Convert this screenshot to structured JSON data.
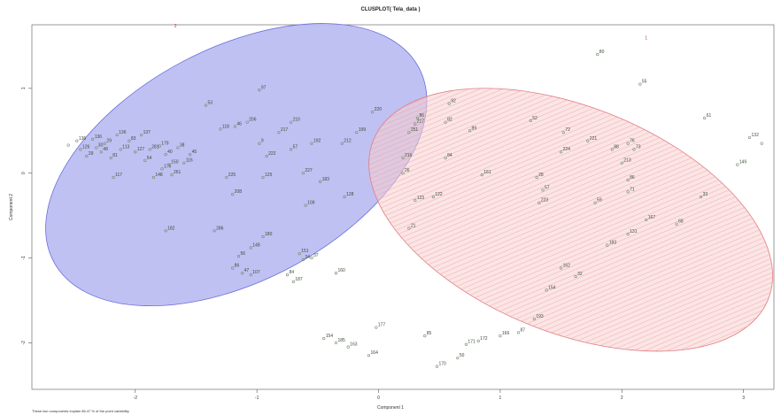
{
  "chart_data": {
    "type": "scatter",
    "title": "CLUSPLOT( Tela_data )",
    "xlabel": "Component 1",
    "ylabel": "Component 2",
    "note": "These two components explain 86.47 % of the point variability.",
    "xlim": [
      -2.85,
      3.25
    ],
    "ylim": [
      -2.55,
      1.75
    ],
    "x_ticks": [
      "-2",
      "-1",
      "0",
      "1",
      "2",
      "3"
    ],
    "x_tick_values": [
      -2,
      -1,
      0,
      1,
      2,
      3
    ],
    "y_ticks": [
      "1",
      "0",
      "-1",
      "-2"
    ],
    "y_tick_values": [
      1,
      0,
      -1,
      -2
    ],
    "colors": {
      "cluster_blue_fill": "#b8baf2",
      "cluster_blue_stroke": "#6a6fd8",
      "cluster_red_fill": "#f7cfd0",
      "cluster_red_stroke": "#e27b80",
      "point": "#6f8c6a",
      "label": "#3a4a33",
      "cluster_label": "#c0392b"
    },
    "clusters": [
      {
        "label": "2",
        "cx": -1.17,
        "cy": 0.1,
        "rx": 1.7,
        "ry": 1.37,
        "angle": -28,
        "fill_key": "cluster_blue_fill",
        "stroke_key": "cluster_blue_stroke",
        "label_x": -1.67,
        "label_y": 1.72
      },
      {
        "label": "1",
        "cx": 1.58,
        "cy": -0.55,
        "rx": 1.75,
        "ry": 1.33,
        "angle": 22,
        "fill_key": "cluster_red_fill",
        "stroke_key": "cluster_red_stroke",
        "label_x": 2.2,
        "label_y": 1.58
      }
    ],
    "points": [
      {
        "x": -2.55,
        "y": 0.33,
        "label": ""
      },
      {
        "x": -2.48,
        "y": 0.38,
        "label": "136"
      },
      {
        "x": -2.45,
        "y": 0.28,
        "label": "126"
      },
      {
        "x": -2.4,
        "y": 0.2,
        "label": "29"
      },
      {
        "x": -2.35,
        "y": 0.4,
        "label": "136"
      },
      {
        "x": -2.32,
        "y": 0.3,
        "label": "30"
      },
      {
        "x": -2.28,
        "y": 0.25,
        "label": "48"
      },
      {
        "x": -2.25,
        "y": 0.35,
        "label": "29"
      },
      {
        "x": -2.2,
        "y": 0.18,
        "label": "81"
      },
      {
        "x": -2.15,
        "y": 0.45,
        "label": "136"
      },
      {
        "x": -2.12,
        "y": 0.28,
        "label": "113"
      },
      {
        "x": -2.05,
        "y": 0.38,
        "label": "83"
      },
      {
        "x": -2.0,
        "y": 0.25,
        "label": "127"
      },
      {
        "x": -1.95,
        "y": 0.45,
        "label": "137"
      },
      {
        "x": -1.92,
        "y": 0.15,
        "label": "54"
      },
      {
        "x": -1.88,
        "y": 0.28,
        "label": "281"
      },
      {
        "x": -1.8,
        "y": 0.32,
        "label": "179"
      },
      {
        "x": -1.75,
        "y": 0.22,
        "label": "40"
      },
      {
        "x": -1.78,
        "y": 0.05,
        "label": "176"
      },
      {
        "x": -1.72,
        "y": 0.1,
        "label": "150"
      },
      {
        "x": -1.7,
        "y": -0.02,
        "label": "261"
      },
      {
        "x": -1.85,
        "y": -0.05,
        "label": "148"
      },
      {
        "x": -2.18,
        "y": -0.05,
        "label": "117"
      },
      {
        "x": -1.65,
        "y": 0.3,
        "label": "38"
      },
      {
        "x": -1.6,
        "y": 0.12,
        "label": "116"
      },
      {
        "x": -1.55,
        "y": 0.22,
        "label": "45"
      },
      {
        "x": -1.42,
        "y": 0.8,
        "label": "53"
      },
      {
        "x": -1.3,
        "y": 0.52,
        "label": "118"
      },
      {
        "x": -1.18,
        "y": 0.55,
        "label": "46"
      },
      {
        "x": -1.08,
        "y": 0.6,
        "label": "206"
      },
      {
        "x": -0.98,
        "y": 0.35,
        "label": "9"
      },
      {
        "x": -0.92,
        "y": 0.2,
        "label": "222"
      },
      {
        "x": -0.98,
        "y": 0.98,
        "label": "97"
      },
      {
        "x": -0.82,
        "y": 0.48,
        "label": "217"
      },
      {
        "x": -0.72,
        "y": 0.6,
        "label": "210"
      },
      {
        "x": -0.72,
        "y": 0.28,
        "label": "57"
      },
      {
        "x": -0.55,
        "y": 0.35,
        "label": "192"
      },
      {
        "x": -0.3,
        "y": 0.35,
        "label": "212"
      },
      {
        "x": -0.18,
        "y": 0.48,
        "label": "199"
      },
      {
        "x": -0.05,
        "y": 0.72,
        "label": "220"
      },
      {
        "x": -1.25,
        "y": -0.05,
        "label": "225"
      },
      {
        "x": -0.95,
        "y": -0.05,
        "label": "125"
      },
      {
        "x": -0.62,
        "y": 0.0,
        "label": "227"
      },
      {
        "x": -0.48,
        "y": -0.1,
        "label": "183"
      },
      {
        "x": -1.2,
        "y": -0.25,
        "label": "208"
      },
      {
        "x": -0.6,
        "y": -0.38,
        "label": "109"
      },
      {
        "x": -0.28,
        "y": -0.28,
        "label": "128"
      },
      {
        "x": -1.75,
        "y": -0.68,
        "label": "182"
      },
      {
        "x": -1.35,
        "y": -0.68,
        "label": "286"
      },
      {
        "x": -1.05,
        "y": -0.88,
        "label": "148"
      },
      {
        "x": -0.95,
        "y": -0.75,
        "label": "180"
      },
      {
        "x": -1.15,
        "y": -0.98,
        "label": "56"
      },
      {
        "x": -1.2,
        "y": -1.12,
        "label": "86"
      },
      {
        "x": -1.12,
        "y": -1.18,
        "label": "47"
      },
      {
        "x": -1.05,
        "y": -1.2,
        "label": "107"
      },
      {
        "x": -0.65,
        "y": -0.95,
        "label": "151"
      },
      {
        "x": -0.55,
        "y": -1.0,
        "label": "37"
      },
      {
        "x": -0.62,
        "y": -1.02,
        "label": "34"
      },
      {
        "x": -0.75,
        "y": -1.2,
        "label": "84"
      },
      {
        "x": -0.7,
        "y": -1.28,
        "label": "187"
      },
      {
        "x": -0.35,
        "y": -1.18,
        "label": "160"
      },
      {
        "x": -0.45,
        "y": -1.95,
        "label": "154"
      },
      {
        "x": -0.35,
        "y": -2.0,
        "label": "185"
      },
      {
        "x": -0.25,
        "y": -2.05,
        "label": "163"
      },
      {
        "x": -0.08,
        "y": -2.15,
        "label": "164"
      },
      {
        "x": -0.02,
        "y": -1.82,
        "label": "177"
      },
      {
        "x": 0.2,
        "y": 0.18,
        "label": "216"
      },
      {
        "x": 0.25,
        "y": 0.48,
        "label": "251"
      },
      {
        "x": 0.3,
        "y": 0.58,
        "label": "217"
      },
      {
        "x": 0.32,
        "y": 0.65,
        "label": "86"
      },
      {
        "x": 0.55,
        "y": 0.6,
        "label": "82"
      },
      {
        "x": 0.58,
        "y": 0.82,
        "label": "92"
      },
      {
        "x": 0.75,
        "y": 0.5,
        "label": "89"
      },
      {
        "x": 0.45,
        "y": -0.28,
        "label": "122"
      },
      {
        "x": 0.2,
        "y": 0.0,
        "label": "26"
      },
      {
        "x": 0.3,
        "y": -0.32,
        "label": "123"
      },
      {
        "x": 0.55,
        "y": 0.18,
        "label": "84"
      },
      {
        "x": 0.85,
        "y": -0.02,
        "label": "161"
      },
      {
        "x": 0.25,
        "y": -0.65,
        "label": "21"
      },
      {
        "x": 0.38,
        "y": -1.92,
        "label": "85"
      },
      {
        "x": 0.48,
        "y": -2.28,
        "label": "170"
      },
      {
        "x": 0.65,
        "y": -2.18,
        "label": "50"
      },
      {
        "x": 0.72,
        "y": -2.02,
        "label": "171"
      },
      {
        "x": 0.82,
        "y": -1.98,
        "label": "172"
      },
      {
        "x": 1.0,
        "y": -1.92,
        "label": "166"
      },
      {
        "x": 1.15,
        "y": -1.88,
        "label": "87"
      },
      {
        "x": 1.28,
        "y": -1.72,
        "label": "193"
      },
      {
        "x": 1.38,
        "y": -1.38,
        "label": "154"
      },
      {
        "x": 1.5,
        "y": -1.12,
        "label": "162"
      },
      {
        "x": 1.62,
        "y": -1.22,
        "label": "32"
      },
      {
        "x": 1.88,
        "y": -0.85,
        "label": "183"
      },
      {
        "x": 2.05,
        "y": -0.72,
        "label": "131"
      },
      {
        "x": 2.2,
        "y": -0.55,
        "label": "167"
      },
      {
        "x": 2.45,
        "y": -0.6,
        "label": "68"
      },
      {
        "x": 1.25,
        "y": 0.62,
        "label": "52"
      },
      {
        "x": 1.52,
        "y": 0.48,
        "label": "72"
      },
      {
        "x": 1.72,
        "y": 0.38,
        "label": "221"
      },
      {
        "x": 1.5,
        "y": 0.25,
        "label": "224"
      },
      {
        "x": 1.3,
        "y": -0.05,
        "label": "28"
      },
      {
        "x": 1.35,
        "y": -0.2,
        "label": "57"
      },
      {
        "x": 1.32,
        "y": -0.35,
        "label": "223"
      },
      {
        "x": 1.78,
        "y": -0.35,
        "label": "59"
      },
      {
        "x": 1.92,
        "y": 0.28,
        "label": "88"
      },
      {
        "x": 2.05,
        "y": 0.35,
        "label": "76"
      },
      {
        "x": 2.1,
        "y": 0.28,
        "label": "73"
      },
      {
        "x": 2.0,
        "y": 0.12,
        "label": "213"
      },
      {
        "x": 2.05,
        "y": -0.08,
        "label": "86"
      },
      {
        "x": 2.05,
        "y": -0.22,
        "label": "71"
      },
      {
        "x": 1.8,
        "y": 1.4,
        "label": "80"
      },
      {
        "x": 2.15,
        "y": 1.05,
        "label": "55"
      },
      {
        "x": 2.68,
        "y": 0.65,
        "label": "61"
      },
      {
        "x": 2.65,
        "y": -0.28,
        "label": "33"
      },
      {
        "x": 2.95,
        "y": 0.1,
        "label": "149"
      },
      {
        "x": 3.05,
        "y": 0.42,
        "label": "132"
      },
      {
        "x": 3.15,
        "y": 0.35,
        "label": ""
      }
    ]
  }
}
